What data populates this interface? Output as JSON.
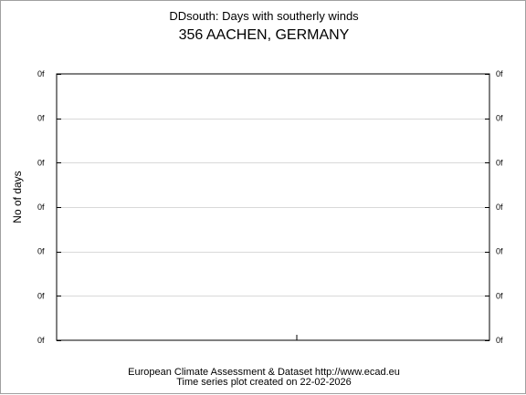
{
  "chart_data": {
    "type": "line",
    "title": "DDsouth: Days with southerly winds",
    "subtitle": "356 AACHEN, GERMANY",
    "ylabel": "No of days",
    "xlabel": "",
    "y_tick_labels": [
      "0f",
      "0f",
      "0f",
      "0f",
      "0f",
      "0f",
      "0f"
    ],
    "grid": true,
    "series": [],
    "footer": {
      "line1": "European Climate Assessment & Dataset  http://www.ecad.eu",
      "line2": "Time series plot created on 22-02-2026"
    }
  }
}
